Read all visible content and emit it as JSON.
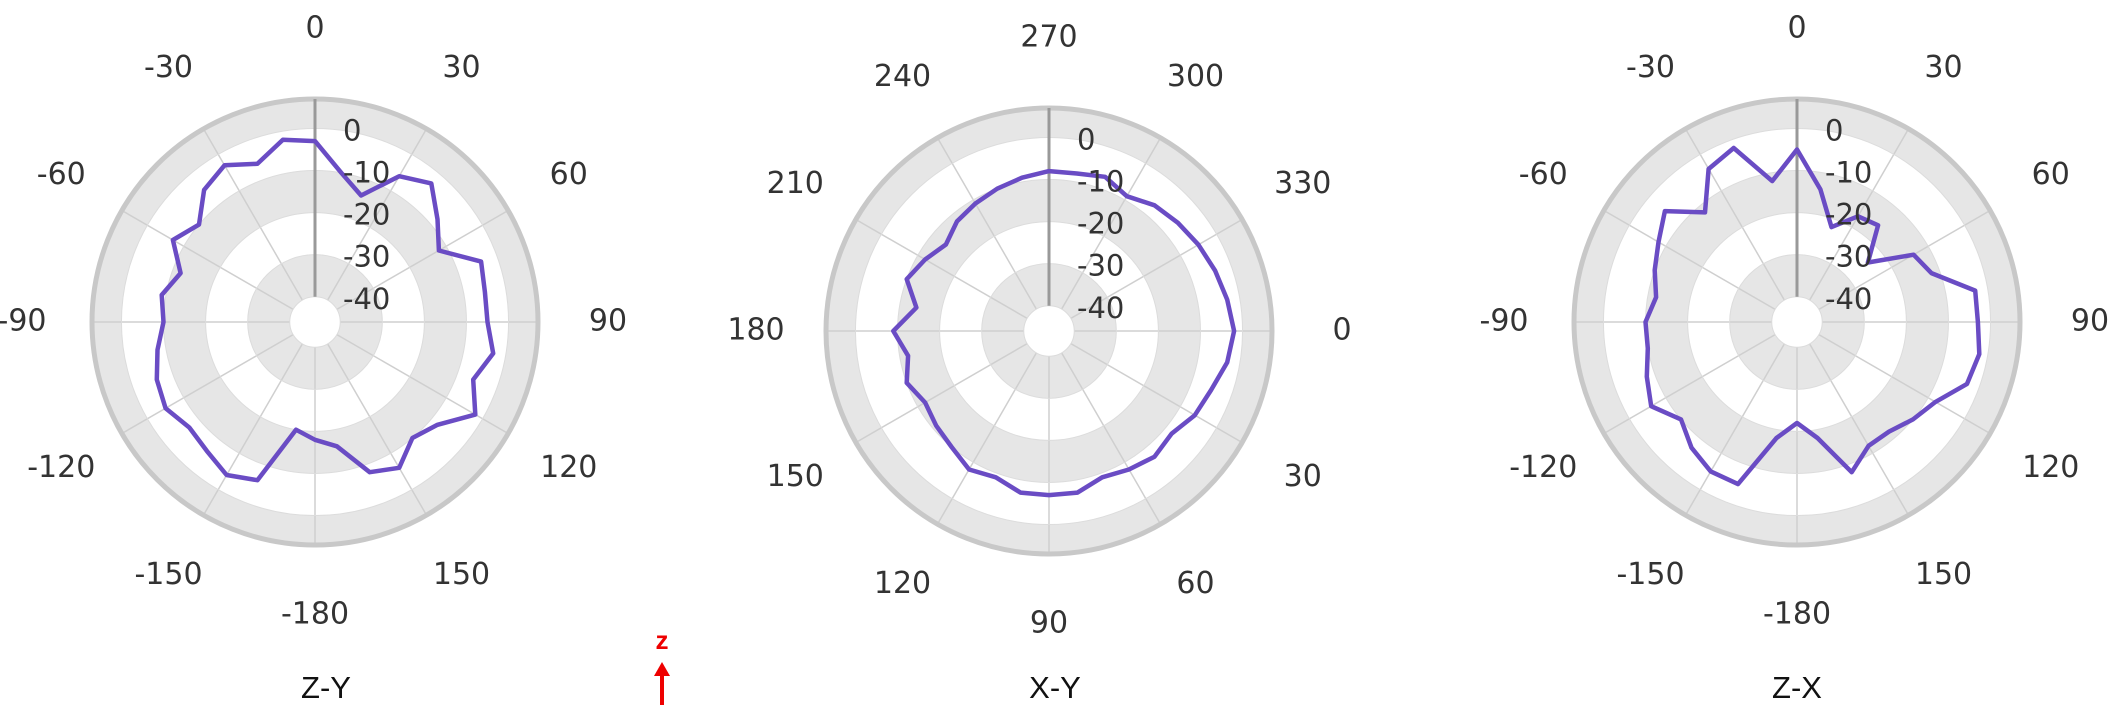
{
  "chart_data": [
    {
      "type": "polar",
      "title": "Z-Y",
      "color": "#6a4cc4",
      "theta_zero": "N",
      "direction": "clockwise",
      "rlim": [
        -46,
        7
      ],
      "rticks": [
        0,
        -10,
        -20,
        -30,
        -40
      ],
      "theta_ticks": [
        0,
        30,
        60,
        90,
        120,
        150,
        -180,
        -150,
        -120,
        -90,
        -60,
        -30
      ],
      "theta": [
        0,
        10,
        20,
        30,
        40,
        50,
        60,
        70,
        80,
        90,
        100,
        110,
        120,
        130,
        140,
        150,
        160,
        170,
        180,
        190,
        200,
        210,
        220,
        230,
        240,
        250,
        260,
        270,
        280,
        290,
        300,
        310,
        320,
        330,
        340,
        350
      ],
      "values": [
        -3,
        -10,
        -14,
        -6,
        -3,
        -8,
        -12,
        -4,
        -5,
        -5,
        -3,
        -6,
        -2,
        -8,
        -10,
        -6,
        -8,
        -16,
        -18,
        -20,
        -6,
        -4,
        -6,
        -7,
        -5,
        -6,
        -8,
        -10,
        -9,
        -12,
        -7,
        -10,
        -5,
        -3,
        -6,
        -2
      ]
    },
    {
      "type": "polar",
      "title": "X-Y",
      "color": "#6a4cc4",
      "theta_zero": "E",
      "direction": "clockwise",
      "rlim": [
        -46,
        7
      ],
      "rticks": [
        0,
        -10,
        -20,
        -30,
        -40
      ],
      "theta_ticks": [
        0,
        30,
        60,
        90,
        120,
        150,
        180,
        210,
        240,
        270,
        300,
        330
      ],
      "theta": [
        0,
        10,
        20,
        30,
        40,
        50,
        60,
        70,
        80,
        90,
        100,
        110,
        120,
        130,
        140,
        150,
        160,
        170,
        180,
        190,
        200,
        210,
        220,
        230,
        240,
        250,
        260,
        270,
        280,
        290,
        300,
        310,
        320,
        330,
        340,
        350
      ],
      "values": [
        -2,
        -3,
        -5,
        -6,
        -8,
        -7,
        -8,
        -9,
        -7,
        -7,
        -7,
        -9,
        -8,
        -10,
        -11,
        -12,
        -10,
        -12,
        -9,
        -14,
        -10,
        -12,
        -14,
        -12,
        -11,
        -10,
        -9,
        -8,
        -8,
        -7,
        -9,
        -7,
        -6,
        -5,
        -4,
        -3
      ]
    },
    {
      "type": "polar",
      "title": "Z-X",
      "color": "#6a4cc4",
      "theta_zero": "N",
      "direction": "clockwise",
      "rlim": [
        -46,
        7
      ],
      "rticks": [
        0,
        -10,
        -20,
        -30,
        -40
      ],
      "theta_ticks": [
        0,
        30,
        60,
        90,
        120,
        150,
        -180,
        -150,
        -120,
        -90,
        -60,
        -30
      ],
      "theta": [
        0,
        10,
        20,
        30,
        40,
        50,
        60,
        70,
        80,
        90,
        100,
        110,
        120,
        130,
        140,
        150,
        160,
        170,
        180,
        190,
        200,
        210,
        220,
        230,
        240,
        250,
        260,
        270,
        280,
        290,
        300,
        310,
        320,
        330,
        340,
        350
      ],
      "values": [
        -5,
        -14,
        -22,
        -17,
        -16,
        -24,
        -14,
        -12,
        -3,
        -3,
        -2,
        -3,
        -8,
        -10,
        -12,
        -12,
        -8,
        -18,
        -22,
        -18,
        -5,
        -5,
        -7,
        -10,
        -6,
        -8,
        -10,
        -10,
        -12,
        -10,
        -8,
        -5,
        -12,
        -4,
        -2,
        -12
      ]
    }
  ],
  "annotation": "z"
}
